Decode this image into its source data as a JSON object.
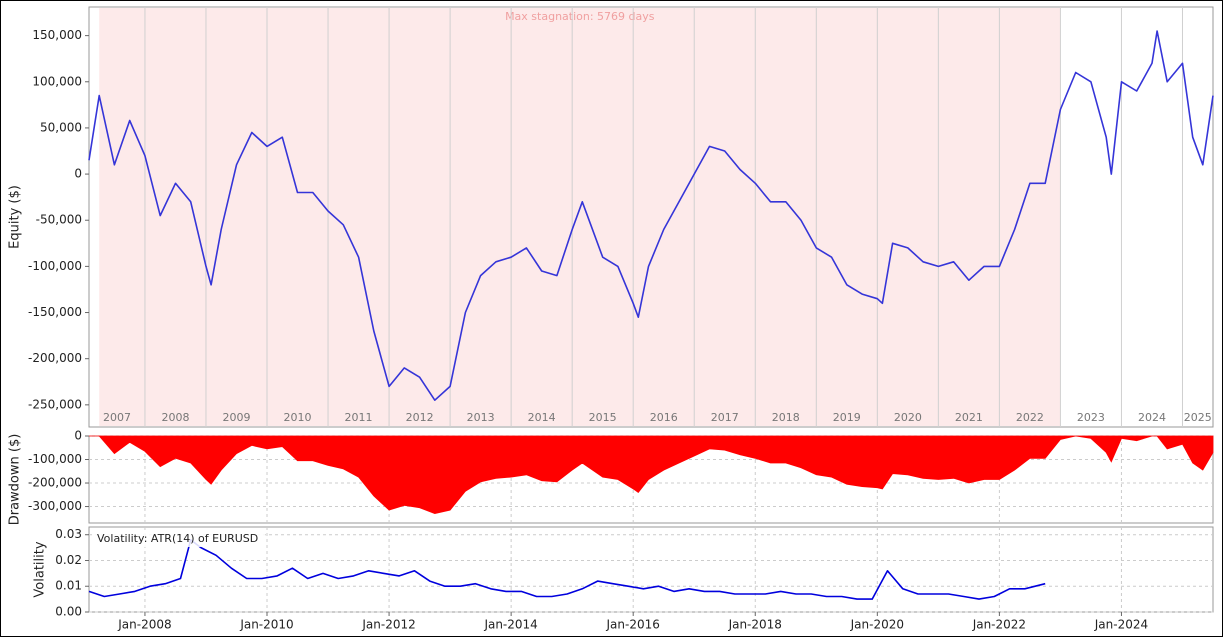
{
  "chart_data": [
    {
      "type": "line",
      "ylabel": "Equity ($)",
      "color": "#3535d8",
      "xlim": [
        "2007-02",
        "2025-07"
      ],
      "ylim": [
        -274000,
        181000
      ],
      "yticks": [
        {
          "value": -250000,
          "label": "-250,000"
        },
        {
          "value": -200000,
          "label": "-200,000"
        },
        {
          "value": -150000,
          "label": "-150,000"
        },
        {
          "value": -100000,
          "label": "-100,000"
        },
        {
          "value": -50000,
          "label": "-50,000"
        },
        0,
        {
          "value": 50000,
          "label": "50,000"
        },
        {
          "value": 100000,
          "label": "100,000"
        },
        {
          "value": 150000,
          "label": "150,000"
        }
      ],
      "period_labels": [
        "2007",
        "2008",
        "2009",
        "2010",
        "2011",
        "2012",
        "2013",
        "2014",
        "2015",
        "2016",
        "2017",
        "2018",
        "2019",
        "2020",
        "2021",
        "2022",
        "2023",
        "2024",
        "2025"
      ],
      "stagnation": {
        "start": "2007-04",
        "end": "2023-01",
        "label": "Max stagnation: 5769 days"
      },
      "x": [
        "2007-02",
        "2007-04",
        "2007-07",
        "2007-10",
        "2008-01",
        "2008-04",
        "2008-07",
        "2008-10",
        "2009-01",
        "2009-02",
        "2009-04",
        "2009-07",
        "2009-10",
        "2010-01",
        "2010-04",
        "2010-07",
        "2010-10",
        "2011-01",
        "2011-04",
        "2011-07",
        "2011-10",
        "2012-01",
        "2012-04",
        "2012-07",
        "2012-10",
        "2013-01",
        "2013-04",
        "2013-07",
        "2013-10",
        "2014-01",
        "2014-04",
        "2014-07",
        "2014-10",
        "2015-01",
        "2015-03",
        "2015-07",
        "2015-10",
        "2016-01",
        "2016-02",
        "2016-04",
        "2016-07",
        "2016-10",
        "2017-01",
        "2017-04",
        "2017-07",
        "2017-10",
        "2018-01",
        "2018-04",
        "2018-07",
        "2018-10",
        "2019-01",
        "2019-04",
        "2019-07",
        "2019-10",
        "2020-01",
        "2020-02",
        "2020-04",
        "2020-07",
        "2020-10",
        "2021-01",
        "2021-04",
        "2021-07",
        "2021-10",
        "2022-01",
        "2022-04",
        "2022-07",
        "2022-10",
        "2023-01",
        "2023-04",
        "2023-07",
        "2023-10",
        "2023-11",
        "2024-01",
        "2024-04",
        "2024-07",
        "2024-08",
        "2024-10",
        "2025-01",
        "2025-03",
        "2025-05",
        "2025-07"
      ],
      "values": [
        15000,
        85000,
        10000,
        58000,
        20000,
        -45000,
        -10000,
        -30000,
        -100000,
        -120000,
        -60000,
        10000,
        45000,
        30000,
        40000,
        -20000,
        -20000,
        -40000,
        -55000,
        -90000,
        -170000,
        -230000,
        -210000,
        -220000,
        -245000,
        -230000,
        -150000,
        -110000,
        -95000,
        -90000,
        -80000,
        -105000,
        -110000,
        -60000,
        -30000,
        -90000,
        -100000,
        -140000,
        -155000,
        -100000,
        -60000,
        -30000,
        0,
        30000,
        25000,
        5000,
        -10000,
        -30000,
        -30000,
        -50000,
        -80000,
        -90000,
        -120000,
        -130000,
        -135000,
        -140000,
        -75000,
        -80000,
        -95000,
        -100000,
        -95000,
        -115000,
        -100000,
        -100000,
        -60000,
        -10000,
        -10000,
        70000,
        110000,
        100000,
        40000,
        0,
        100000,
        90000,
        120000,
        155000,
        100000,
        120000,
        40000,
        10000,
        85000
      ]
    },
    {
      "type": "area",
      "ylabel": "Drawdown ($)",
      "color": "#ff0000",
      "grid": true,
      "xlim": [
        "2007-02",
        "2025-07"
      ],
      "ylim": [
        -370000,
        0
      ],
      "yticks": [
        {
          "value": -300000,
          "label": "-300,000"
        },
        {
          "value": -200000,
          "label": "-200,000"
        },
        {
          "value": -100000,
          "label": "-100,000"
        },
        0
      ],
      "x": [
        "2007-02",
        "2007-04",
        "2007-07",
        "2007-10",
        "2008-01",
        "2008-04",
        "2008-07",
        "2008-10",
        "2009-01",
        "2009-02",
        "2009-04",
        "2009-07",
        "2009-10",
        "2010-01",
        "2010-04",
        "2010-07",
        "2010-10",
        "2011-01",
        "2011-04",
        "2011-07",
        "2011-10",
        "2012-01",
        "2012-04",
        "2012-07",
        "2012-10",
        "2013-01",
        "2013-04",
        "2013-07",
        "2013-10",
        "2014-01",
        "2014-04",
        "2014-07",
        "2014-10",
        "2015-01",
        "2015-03",
        "2015-07",
        "2015-10",
        "2016-01",
        "2016-02",
        "2016-04",
        "2016-07",
        "2016-10",
        "2017-01",
        "2017-04",
        "2017-07",
        "2017-10",
        "2018-01",
        "2018-04",
        "2018-07",
        "2018-10",
        "2019-01",
        "2019-04",
        "2019-07",
        "2019-10",
        "2020-01",
        "2020-02",
        "2020-04",
        "2020-07",
        "2020-10",
        "2021-01",
        "2021-04",
        "2021-07",
        "2021-10",
        "2022-01",
        "2022-04",
        "2022-07",
        "2022-10",
        "2023-01",
        "2023-04",
        "2023-07",
        "2023-10",
        "2023-11",
        "2024-01",
        "2024-04",
        "2024-07",
        "2024-08",
        "2024-10",
        "2025-01",
        "2025-03",
        "2025-05",
        "2025-07"
      ],
      "values": [
        0,
        0,
        -75000,
        -27000,
        -65000,
        -130000,
        -95000,
        -115000,
        -185000,
        -205000,
        -145000,
        -75000,
        -40000,
        -55000,
        -45000,
        -105000,
        -105000,
        -125000,
        -140000,
        -175000,
        -255000,
        -315000,
        -295000,
        -305000,
        -330000,
        -315000,
        -235000,
        -195000,
        -180000,
        -175000,
        -165000,
        -190000,
        -195000,
        -145000,
        -115000,
        -175000,
        -185000,
        -225000,
        -240000,
        -185000,
        -145000,
        -115000,
        -85000,
        -55000,
        -60000,
        -80000,
        -95000,
        -115000,
        -115000,
        -135000,
        -165000,
        -175000,
        -205000,
        -215000,
        -220000,
        -225000,
        -160000,
        -165000,
        -180000,
        -185000,
        -180000,
        -200000,
        -185000,
        -185000,
        -145000,
        -95000,
        -95000,
        -15000,
        0,
        -10000,
        -70000,
        -110000,
        -10000,
        -20000,
        0,
        0,
        -55000,
        -35000,
        -115000,
        -145000,
        -70000
      ]
    },
    {
      "type": "line",
      "ylabel": "Volatility",
      "color": "#0000dd",
      "grid": true,
      "annotation": "Volatility: ATR(14) of EURUSD",
      "xlim": [
        "2007-02",
        "2025-07"
      ],
      "ylim": [
        0,
        0.033
      ],
      "yticks": [
        {
          "value": 0,
          "label": "0.00"
        },
        0.01,
        0.02,
        0.03
      ],
      "xticks": [
        {
          "value": "2008-01",
          "label": "Jan-2008"
        },
        {
          "value": "2010-01",
          "label": "Jan-2010"
        },
        {
          "value": "2012-01",
          "label": "Jan-2012"
        },
        {
          "value": "2014-01",
          "label": "Jan-2014"
        },
        {
          "value": "2016-01",
          "label": "Jan-2016"
        },
        {
          "value": "2018-01",
          "label": "Jan-2018"
        },
        {
          "value": "2020-01",
          "label": "Jan-2020"
        },
        {
          "value": "2022-01",
          "label": "Jan-2022"
        },
        {
          "value": "2024-01",
          "label": "Jan-2024"
        }
      ],
      "x": [
        "2007-02",
        "2007-05",
        "2007-08",
        "2007-11",
        "2008-02",
        "2008-05",
        "2008-08",
        "2008-10",
        "2008-12",
        "2009-03",
        "2009-06",
        "2009-09",
        "2009-12",
        "2010-03",
        "2010-06",
        "2010-09",
        "2010-12",
        "2011-03",
        "2011-06",
        "2011-09",
        "2011-12",
        "2012-03",
        "2012-06",
        "2012-09",
        "2012-12",
        "2013-03",
        "2013-06",
        "2013-09",
        "2013-12",
        "2014-03",
        "2014-06",
        "2014-09",
        "2014-12",
        "2015-03",
        "2015-06",
        "2015-09",
        "2015-12",
        "2016-03",
        "2016-06",
        "2016-09",
        "2016-12",
        "2017-03",
        "2017-06",
        "2017-09",
        "2017-12",
        "2018-03",
        "2018-06",
        "2018-09",
        "2018-12",
        "2019-03",
        "2019-06",
        "2019-09",
        "2019-12",
        "2020-03",
        "2020-06",
        "2020-09",
        "2020-12",
        "2021-03",
        "2021-06",
        "2021-09",
        "2021-12",
        "2022-03",
        "2022-06",
        "2022-10"
      ],
      "values": [
        0.008,
        0.006,
        0.007,
        0.008,
        0.01,
        0.011,
        0.013,
        0.028,
        0.025,
        0.022,
        0.017,
        0.013,
        0.013,
        0.014,
        0.017,
        0.013,
        0.015,
        0.013,
        0.014,
        0.016,
        0.015,
        0.014,
        0.016,
        0.012,
        0.01,
        0.01,
        0.011,
        0.009,
        0.008,
        0.008,
        0.006,
        0.006,
        0.007,
        0.009,
        0.012,
        0.011,
        0.01,
        0.009,
        0.01,
        0.008,
        0.009,
        0.008,
        0.008,
        0.007,
        0.007,
        0.007,
        0.008,
        0.007,
        0.007,
        0.006,
        0.006,
        0.005,
        0.005,
        0.016,
        0.009,
        0.007,
        0.007,
        0.007,
        0.006,
        0.005,
        0.006,
        0.009,
        0.009,
        0.011
      ]
    }
  ]
}
